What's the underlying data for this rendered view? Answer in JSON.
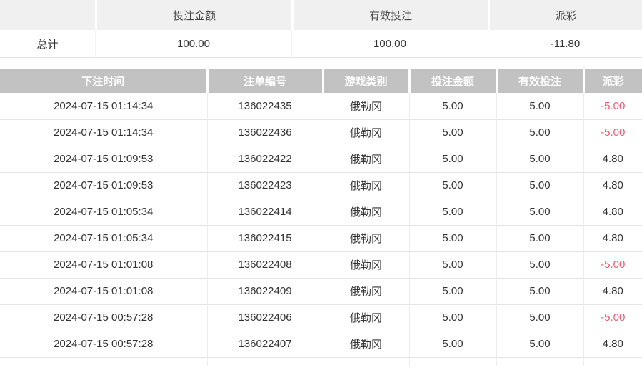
{
  "colors": {
    "negative_value": "#ee5c6f",
    "table_header_bg": "#c2c2c2",
    "table_header_text": "#ffffff",
    "summary_header_bg": "#f0f0f0"
  },
  "summary": {
    "columns": {
      "label": "",
      "bet_amount": "投注金额",
      "valid_bet": "有效投注",
      "payout": "派彩"
    },
    "row": {
      "label": "总计",
      "bet_amount": "100.00",
      "valid_bet": "100.00",
      "payout": "-11.80"
    }
  },
  "table": {
    "columns": {
      "time": "下注时间",
      "order_id": "注单编号",
      "game": "游戏类别",
      "bet": "投注金额",
      "valid": "有效投注",
      "payout": "派彩"
    },
    "rows": [
      {
        "time": "2024-07-15 01:14:34",
        "order_id": "136022435",
        "game": "俄勒冈",
        "bet": "5.00",
        "valid": "5.00",
        "payout": "-5.00"
      },
      {
        "time": "2024-07-15 01:14:34",
        "order_id": "136022436",
        "game": "俄勒冈",
        "bet": "5.00",
        "valid": "5.00",
        "payout": "-5.00"
      },
      {
        "time": "2024-07-15 01:09:53",
        "order_id": "136022422",
        "game": "俄勒冈",
        "bet": "5.00",
        "valid": "5.00",
        "payout": "4.80"
      },
      {
        "time": "2024-07-15 01:09:53",
        "order_id": "136022423",
        "game": "俄勒冈",
        "bet": "5.00",
        "valid": "5.00",
        "payout": "4.80"
      },
      {
        "time": "2024-07-15 01:05:34",
        "order_id": "136022414",
        "game": "俄勒冈",
        "bet": "5.00",
        "valid": "5.00",
        "payout": "4.80"
      },
      {
        "time": "2024-07-15 01:05:34",
        "order_id": "136022415",
        "game": "俄勒冈",
        "bet": "5.00",
        "valid": "5.00",
        "payout": "4.80"
      },
      {
        "time": "2024-07-15 01:01:08",
        "order_id": "136022408",
        "game": "俄勒冈",
        "bet": "5.00",
        "valid": "5.00",
        "payout": "-5.00"
      },
      {
        "time": "2024-07-15 01:01:08",
        "order_id": "136022409",
        "game": "俄勒冈",
        "bet": "5.00",
        "valid": "5.00",
        "payout": "4.80"
      },
      {
        "time": "2024-07-15 00:57:28",
        "order_id": "136022406",
        "game": "俄勒冈",
        "bet": "5.00",
        "valid": "5.00",
        "payout": "-5.00"
      },
      {
        "time": "2024-07-15 00:57:28",
        "order_id": "136022407",
        "game": "俄勒冈",
        "bet": "5.00",
        "valid": "5.00",
        "payout": "4.80"
      }
    ]
  }
}
